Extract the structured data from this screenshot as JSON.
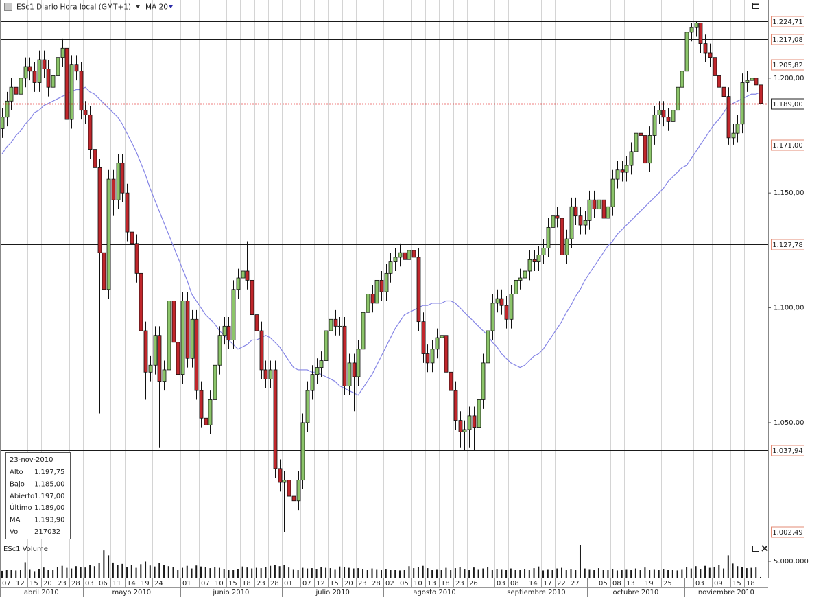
{
  "chart_data": {
    "type": "candlestick",
    "title": "ESc1 Diario Hora local (GMT+1)",
    "categories": [
      "07",
      null,
      null,
      "12",
      null,
      null,
      "15",
      null,
      null,
      "20",
      null,
      null,
      "23",
      null,
      null,
      "28",
      null,
      null,
      "03",
      null,
      null,
      "06",
      null,
      null,
      "11",
      null,
      null,
      "14",
      null,
      null,
      "19",
      null,
      null,
      "24",
      null,
      null,
      null,
      null,
      null,
      "01",
      null,
      null,
      null,
      "07",
      null,
      null,
      "10",
      null,
      null,
      "15",
      null,
      null,
      "18",
      null,
      null,
      "23",
      null,
      null,
      "28",
      null,
      null,
      "01",
      null,
      null,
      null,
      "07",
      null,
      null,
      "12",
      null,
      null,
      "15",
      null,
      null,
      "20",
      null,
      null,
      "23",
      null,
      null,
      "28",
      null,
      null,
      "02",
      null,
      null,
      "05",
      null,
      null,
      "10",
      null,
      null,
      "13",
      null,
      null,
      "18",
      null,
      null,
      "23",
      null,
      null,
      "26",
      null,
      null,
      null,
      null,
      null,
      "03",
      null,
      null,
      "08",
      null,
      null,
      null,
      "14",
      null,
      null,
      "17",
      null,
      null,
      "22",
      null,
      null,
      "27",
      null,
      null,
      null,
      null,
      null,
      "05",
      null,
      null,
      "08",
      null,
      null,
      "13",
      null,
      null,
      null,
      "19",
      null,
      null,
      null,
      "25",
      null,
      null,
      null,
      null,
      null,
      null,
      "03",
      null,
      null,
      null,
      "09",
      null,
      null,
      null,
      "15",
      null,
      null,
      "18",
      null,
      null,
      null
    ],
    "month_categories": [
      "abril 2010",
      null,
      null,
      null,
      null,
      null,
      null,
      null,
      null,
      null,
      null,
      null,
      null,
      null,
      null,
      null,
      null,
      null,
      "mayo 2010",
      null,
      null,
      null,
      null,
      null,
      null,
      null,
      null,
      null,
      null,
      null,
      null,
      null,
      null,
      null,
      null,
      null,
      null,
      null,
      null,
      "junio 2010",
      null,
      null,
      null,
      null,
      null,
      null,
      null,
      null,
      null,
      null,
      null,
      null,
      null,
      null,
      null,
      null,
      null,
      null,
      null,
      null,
      null,
      "julio 2010",
      null,
      null,
      null,
      null,
      null,
      null,
      null,
      null,
      null,
      null,
      null,
      null,
      null,
      null,
      null,
      null,
      null,
      null,
      null,
      null,
      null,
      "agosto 2010",
      null,
      null,
      null,
      null,
      null,
      null,
      null,
      null,
      null,
      null,
      null,
      null,
      null,
      null,
      null,
      null,
      null,
      null,
      null,
      null,
      null,
      "septiembre 2010",
      null,
      null,
      null,
      null,
      null,
      null,
      null,
      null,
      null,
      null,
      null,
      null,
      null,
      null,
      null,
      null,
      null,
      null,
      null,
      null,
      null,
      "octubre 2010",
      null,
      null,
      null,
      null,
      null,
      null,
      null,
      null,
      null,
      null,
      null,
      null,
      null,
      null,
      null,
      null,
      null,
      null,
      null,
      null,
      "noviembre 2010",
      null,
      null,
      null,
      null,
      null,
      null,
      null,
      null,
      null,
      null,
      null,
      null,
      null,
      null,
      null,
      null
    ],
    "open": [
      1178,
      1183,
      1190,
      1196,
      1193,
      1200,
      1205,
      1203,
      1198,
      1208,
      1204,
      1196,
      1201,
      1209,
      1213,
      1182,
      1206,
      1203,
      1186,
      1184,
      1169,
      1161,
      1124,
      1108,
      1156,
      1147,
      1163,
      1150,
      1133,
      1128,
      1115,
      1090,
      1072,
      1075,
      1088,
      1068,
      1073,
      1103,
      1085,
      1071,
      1103,
      1078,
      1095,
      1064,
      1052,
      1049,
      1060,
      1075,
      1088,
      1092,
      1086,
      1108,
      1113,
      1116,
      1112,
      1097,
      1090,
      1073,
      1069,
      1073,
      1030,
      1024,
      1025,
      1018,
      1016,
      1025,
      1050,
      1064,
      1071,
      1074,
      1077,
      1090,
      1095,
      1092,
      1092,
      1066,
      1076,
      1070,
      1082,
      1098,
      1106,
      1102,
      1112,
      1107,
      1115,
      1120,
      1122,
      1124,
      1121,
      1125,
      1122,
      1094,
      1080,
      1076,
      1082,
      1087,
      1088,
      1072,
      1064,
      1051,
      1046,
      1047,
      1053,
      1048,
      1060,
      1076,
      1090,
      1102,
      1104,
      1101,
      1095,
      1106,
      1112,
      1113,
      1116,
      1121,
      1120,
      1123,
      1126,
      1135,
      1140,
      1139,
      1123,
      1130,
      1144,
      1140,
      1136,
      1138,
      1147,
      1143,
      1147,
      1139,
      1144,
      1156,
      1160,
      1159,
      1162,
      1168,
      1176,
      1175,
      1163,
      1175,
      1184,
      1186,
      1183,
      1181,
      1186,
      1196,
      1203,
      1220,
      1222,
      1224,
      1215,
      1211,
      1209,
      1201,
      1196,
      1192,
      1174,
      1176,
      1180,
      1198,
      1199,
      1200,
      1197
    ],
    "high": [
      1187,
      1194,
      1200,
      1200,
      1204,
      1209,
      1209,
      1207,
      1212,
      1212,
      1208,
      1205,
      1213,
      1217,
      1217,
      1210,
      1210,
      1207,
      1190,
      1188,
      1173,
      1165,
      1128,
      1160,
      1160,
      1167,
      1167,
      1154,
      1137,
      1132,
      1119,
      1094,
      1079,
      1092,
      1092,
      1077,
      1107,
      1107,
      1089,
      1107,
      1107,
      1099,
      1099,
      1068,
      1056,
      1064,
      1079,
      1092,
      1096,
      1096,
      1112,
      1117,
      1120,
      1129,
      1116,
      1101,
      1094,
      1077,
      1077,
      1077,
      1034,
      1029,
      1029,
      1022,
      1029,
      1054,
      1068,
      1075,
      1078,
      1081,
      1094,
      1099,
      1099,
      1096,
      1096,
      1080,
      1080,
      1086,
      1102,
      1110,
      1110,
      1116,
      1116,
      1119,
      1124,
      1126,
      1128,
      1128,
      1129,
      1129,
      1126,
      1098,
      1084,
      1086,
      1091,
      1092,
      1092,
      1076,
      1068,
      1055,
      1051,
      1057,
      1057,
      1064,
      1080,
      1094,
      1106,
      1108,
      1108,
      1105,
      1110,
      1116,
      1117,
      1120,
      1125,
      1125,
      1127,
      1130,
      1139,
      1144,
      1144,
      1143,
      1134,
      1148,
      1148,
      1144,
      1142,
      1151,
      1151,
      1151,
      1151,
      1148,
      1160,
      1164,
      1164,
      1166,
      1172,
      1180,
      1180,
      1179,
      1179,
      1188,
      1190,
      1190,
      1187,
      1190,
      1200,
      1207,
      1224,
      1224,
      1224.71,
      1224,
      1219,
      1215,
      1213,
      1205,
      1200,
      1196,
      1180,
      1184,
      1202,
      1203,
      1205,
      1204,
      1197.75
    ],
    "low": [
      1174,
      1179,
      1186,
      1189,
      1189,
      1196,
      1199,
      1194,
      1194,
      1200,
      1192,
      1192,
      1197,
      1205,
      1178,
      1178,
      1199,
      1182,
      1180,
      1165,
      1157,
      1054,
      1095,
      1104,
      1140,
      1143,
      1146,
      1129,
      1124,
      1111,
      1086,
      1060,
      1068,
      1071,
      1039,
      1064,
      1069,
      1081,
      1067,
      1067,
      1074,
      1074,
      1060,
      1048,
      1044,
      1045,
      1056,
      1071,
      1084,
      1082,
      1082,
      1104,
      1109,
      1108,
      1093,
      1086,
      1069,
      1065,
      1065,
      1026,
      1020,
      1002.49,
      1014,
      1012,
      1012,
      1021,
      1046,
      1060,
      1067,
      1070,
      1073,
      1086,
      1088,
      1088,
      1062,
      1062,
      1055,
      1066,
      1078,
      1094,
      1098,
      1098,
      1103,
      1103,
      1111,
      1116,
      1118,
      1117,
      1117,
      1118,
      1090,
      1076,
      1072,
      1072,
      1078,
      1083,
      1068,
      1060,
      1047,
      1039,
      1038,
      1039,
      1038,
      1044,
      1056,
      1072,
      1086,
      1098,
      1097,
      1091,
      1091,
      1102,
      1108,
      1109,
      1112,
      1116,
      1116,
      1119,
      1122,
      1131,
      1135,
      1119,
      1119,
      1126,
      1136,
      1132,
      1132,
      1134,
      1139,
      1139,
      1135,
      1131,
      1140,
      1152,
      1155,
      1155,
      1158,
      1164,
      1171,
      1159,
      1159,
      1171,
      1180,
      1179,
      1177,
      1177,
      1182,
      1192,
      1199,
      1216,
      1218,
      1211,
      1207,
      1205,
      1197,
      1192,
      1188,
      1171,
      1171,
      1172,
      1176,
      1194,
      1195,
      1193,
      1185
    ],
    "close": [
      1183,
      1190,
      1196,
      1193,
      1200,
      1205,
      1203,
      1198,
      1208,
      1204,
      1196,
      1201,
      1209,
      1213,
      1182,
      1206,
      1203,
      1186,
      1184,
      1169,
      1161,
      1124,
      1108,
      1156,
      1147,
      1163,
      1150,
      1133,
      1128,
      1115,
      1090,
      1072,
      1075,
      1088,
      1068,
      1073,
      1103,
      1085,
      1071,
      1103,
      1078,
      1095,
      1064,
      1052,
      1049,
      1060,
      1075,
      1088,
      1092,
      1086,
      1108,
      1113,
      1116,
      1112,
      1097,
      1090,
      1073,
      1069,
      1073,
      1030,
      1024,
      1025,
      1018,
      1016,
      1025,
      1050,
      1064,
      1071,
      1074,
      1077,
      1090,
      1095,
      1092,
      1092,
      1066,
      1076,
      1070,
      1082,
      1098,
      1106,
      1102,
      1112,
      1107,
      1115,
      1120,
      1122,
      1124,
      1121,
      1125,
      1122,
      1094,
      1080,
      1076,
      1082,
      1087,
      1088,
      1072,
      1064,
      1051,
      1046,
      1047,
      1053,
      1048,
      1060,
      1076,
      1090,
      1102,
      1104,
      1101,
      1095,
      1106,
      1112,
      1113,
      1116,
      1121,
      1120,
      1123,
      1126,
      1135,
      1140,
      1139,
      1123,
      1130,
      1144,
      1140,
      1136,
      1138,
      1147,
      1143,
      1147,
      1139,
      1144,
      1156,
      1160,
      1159,
      1162,
      1168,
      1176,
      1175,
      1163,
      1175,
      1184,
      1186,
      1183,
      1181,
      1186,
      1196,
      1203,
      1220,
      1222,
      1224,
      1215,
      1211,
      1209,
      1201,
      1196,
      1192,
      1174,
      1176,
      1180,
      1198,
      1199,
      1200,
      1197,
      1189
    ],
    "up_color": "#8cc56a",
    "down_color": "#c0262b",
    "ylim": [
      998,
      1234
    ],
    "yticks": [
      {
        "value": 1050,
        "label": "1.050,00"
      },
      {
        "value": 1100,
        "label": "1.100,00"
      },
      {
        "value": 1150,
        "label": "1.150,00"
      },
      {
        "value": 1200,
        "label": "1.200,00"
      }
    ],
    "xgrid": true,
    "levels": [
      {
        "value": 1224.71,
        "label": "1.224,71"
      },
      {
        "value": 1217.08,
        "label": "1.217,08"
      },
      {
        "value": 1205.82,
        "label": "1.205,82"
      },
      {
        "value": 1171.0,
        "label": "1.171,00"
      },
      {
        "value": 1127.78,
        "label": "1.127,78"
      },
      {
        "value": 1037.94,
        "label": "1.037,94"
      },
      {
        "value": 1002.49,
        "label": "1.002,49"
      }
    ],
    "last_price": {
      "value": 1189.0,
      "label": "1.189,00",
      "color": "#e00000"
    },
    "ma": {
      "name": "MA 20",
      "color": "#8585e6",
      "values": [
        1167,
        1170,
        1172,
        1175,
        1177,
        1180,
        1182,
        1185,
        1186,
        1188,
        1189,
        1190,
        1191,
        1192,
        1193,
        1194,
        1195,
        1195,
        1196,
        1194,
        1193,
        1191,
        1189,
        1187,
        1185,
        1183,
        1180,
        1176,
        1172,
        1168,
        1163,
        1158,
        1152,
        1147,
        1142,
        1137,
        1132,
        1127,
        1122,
        1117,
        1112,
        1106,
        1103,
        1100,
        1097,
        1095,
        1093,
        1090,
        1088,
        1086,
        1084,
        1082,
        1083,
        1084,
        1086,
        1086,
        1087,
        1088,
        1087,
        1085,
        1083,
        1080,
        1077,
        1074,
        1073,
        1073,
        1073,
        1072,
        1072,
        1071,
        1070,
        1069,
        1068,
        1066,
        1065,
        1064,
        1063,
        1062,
        1065,
        1068,
        1071,
        1075,
        1079,
        1083,
        1087,
        1091,
        1094,
        1097,
        1098,
        1099,
        1100,
        1101,
        1101,
        1102,
        1102,
        1102,
        1103,
        1103,
        1102,
        1100,
        1098,
        1096,
        1094,
        1092,
        1090,
        1088,
        1085,
        1083,
        1080,
        1078,
        1076,
        1075,
        1074,
        1075,
        1077,
        1079,
        1080,
        1082,
        1085,
        1088,
        1091,
        1094,
        1098,
        1101,
        1105,
        1108,
        1112,
        1115,
        1118,
        1121,
        1124,
        1127,
        1129,
        1132,
        1134,
        1136,
        1138,
        1140,
        1142,
        1144,
        1146,
        1148,
        1150,
        1152,
        1155,
        1157,
        1159,
        1161,
        1162,
        1165,
        1168,
        1171,
        1174,
        1177,
        1180,
        1182,
        1185,
        1188,
        1189,
        1190,
        1191,
        1192,
        1193,
        1193,
        1193.9
      ]
    },
    "volume": {
      "name": "ESc1 Volume",
      "color": "#1a1a1a",
      "ylim": [
        0,
        10000000
      ],
      "yticks": [
        {
          "value": 5000000,
          "label": "5.000.000"
        }
      ],
      "values": [
        2100000,
        2300000,
        2500000,
        2200000,
        2400000,
        4700000,
        2600000,
        2000000,
        2700000,
        3100000,
        2500000,
        2400000,
        3200000,
        3600000,
        3000000,
        2800000,
        3500000,
        3300000,
        3100000,
        3800000,
        3500000,
        4400000,
        8300000,
        6800000,
        4600000,
        3900000,
        4200000,
        3200000,
        3800000,
        3000000,
        4100000,
        4900000,
        3700000,
        3400000,
        4400000,
        3900000,
        3500000,
        3300000,
        2400000,
        3000000,
        3600000,
        2800000,
        3700000,
        3400000,
        3200000,
        2900000,
        3300000,
        3000000,
        2700000,
        2500000,
        2400000,
        2700000,
        3400000,
        3100000,
        2800000,
        3000000,
        2900000,
        3300000,
        3600000,
        3900000,
        3500000,
        3800000,
        3100000,
        2600000,
        2400000,
        3000000,
        2800000,
        2900000,
        2700000,
        3300000,
        3000000,
        2900000,
        2600000,
        3400000,
        3200000,
        3000000,
        2800000,
        2900000,
        2700000,
        2500000,
        2800000,
        2600000,
        2400000,
        2700000,
        2500000,
        2300000,
        2200000,
        2400000,
        3500000,
        2900000,
        3300000,
        3600000,
        2900000,
        2400000,
        2600000,
        2300000,
        3000000,
        2500000,
        2900000,
        3200000,
        2700000,
        2400000,
        3100000,
        2600000,
        2800000,
        3300000,
        2500000,
        2700000,
        2600000,
        2400000,
        2800000,
        2300000,
        2500000,
        2700000,
        2400000,
        2900000,
        3400000,
        2200000,
        2600000,
        2500000,
        2800000,
        3000000,
        2400000,
        2700000,
        2400000,
        10000000,
        2800000,
        2600000,
        2400000,
        2900000,
        2300000,
        2500000,
        2700000,
        2200000,
        2400000,
        2600000,
        2300000,
        2800000,
        2500000,
        3100000,
        2400000,
        2600000,
        2300000,
        2700000,
        2500000,
        2400000,
        2200000,
        2600000,
        3300000,
        2800000,
        3500000,
        2700000,
        3600000,
        3000000,
        3300000,
        3900000,
        2800000,
        6800000,
        4300000,
        3500000,
        3200000,
        2900000,
        3000000,
        3100000,
        217032
      ]
    },
    "info": {
      "date": "23-nov-2010",
      "rows": [
        {
          "label": "Alto",
          "value": "1.197,75"
        },
        {
          "label": "Bajo",
          "value": "1.185,00"
        },
        {
          "label": "Abierto",
          "value": "1.197,00"
        },
        {
          "label": "Último",
          "value": "1.189,00"
        },
        {
          "label": "MA",
          "value": "1.193,90",
          "color": "#2a2aa8"
        },
        {
          "label": "Vol",
          "value": "217032"
        }
      ]
    }
  }
}
